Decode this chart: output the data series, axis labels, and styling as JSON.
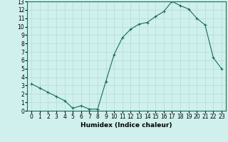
{
  "x": [
    0,
    1,
    2,
    3,
    4,
    5,
    6,
    7,
    8,
    9,
    10,
    11,
    12,
    13,
    14,
    15,
    16,
    17,
    18,
    19,
    20,
    21,
    22,
    23
  ],
  "y": [
    3.2,
    2.7,
    2.2,
    1.7,
    1.2,
    0.3,
    0.6,
    0.2,
    0.2,
    3.5,
    6.7,
    8.7,
    9.7,
    10.3,
    10.5,
    11.2,
    11.8,
    13.0,
    12.5,
    12.1,
    11.0,
    10.2,
    6.3,
    5.0
  ],
  "line_color": "#1a6b5a",
  "marker": "+",
  "marker_size": 3,
  "xlabel": "Humidex (Indice chaleur)",
  "xlim": [
    -0.5,
    23.5
  ],
  "ylim": [
    0,
    13
  ],
  "xticks": [
    0,
    1,
    2,
    3,
    4,
    5,
    6,
    7,
    8,
    9,
    10,
    11,
    12,
    13,
    14,
    15,
    16,
    17,
    18,
    19,
    20,
    21,
    22,
    23
  ],
  "yticks": [
    0,
    1,
    2,
    3,
    4,
    5,
    6,
    7,
    8,
    9,
    10,
    11,
    12,
    13
  ],
  "bg_color": "#cff0ec",
  "grid_color": "#b0ddd8",
  "xlabel_fontsize": 6.5,
  "tick_fontsize": 5.5,
  "linewidth": 0.8,
  "markeredgewidth": 0.8
}
